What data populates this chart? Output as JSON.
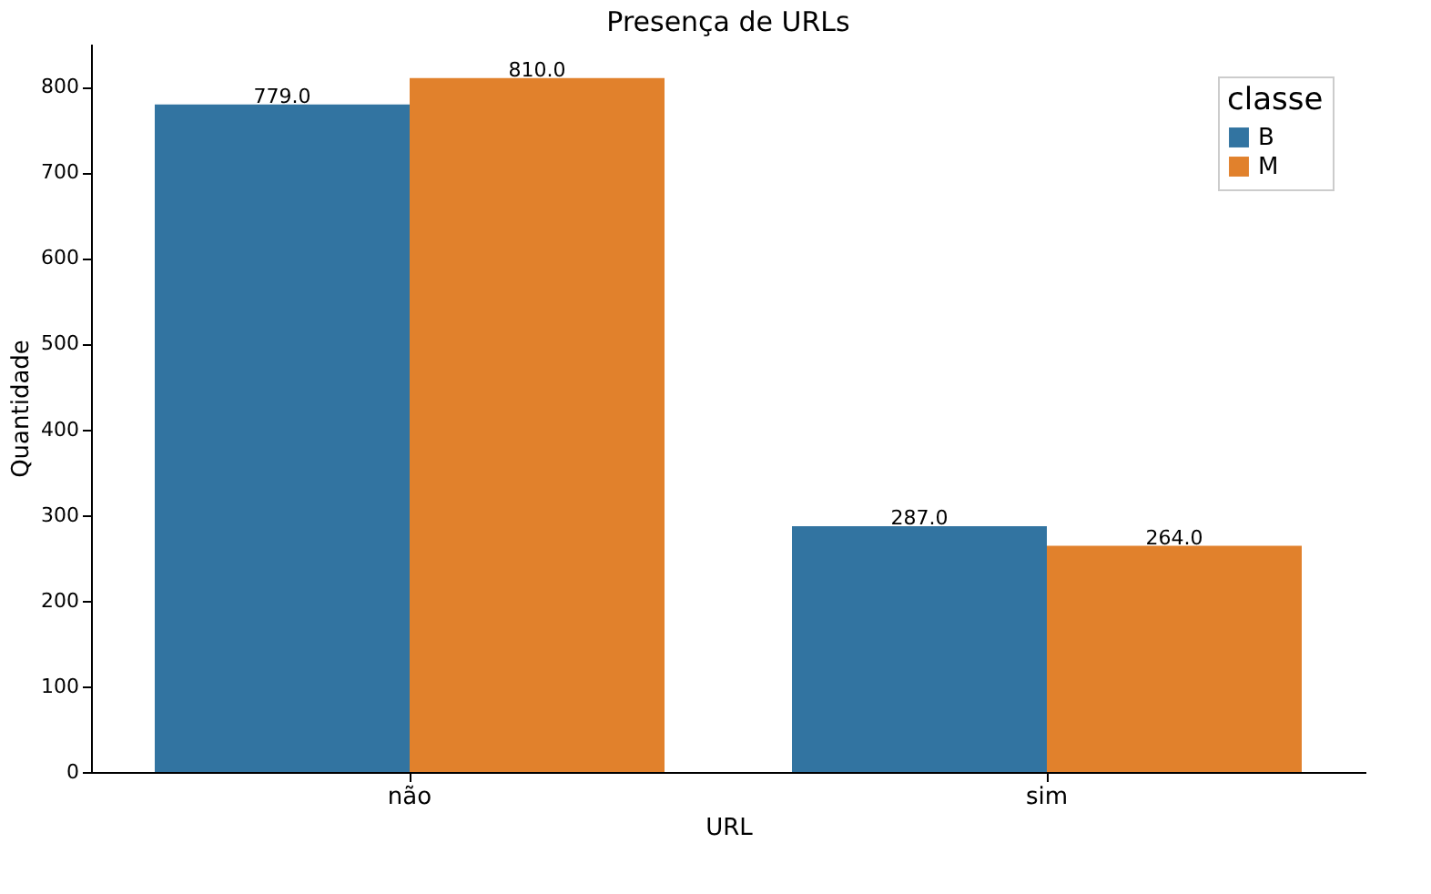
{
  "chart_data": {
    "type": "bar",
    "title": "Presença de URLs",
    "xlabel": "URL",
    "ylabel": "Quantidade",
    "legend_title": "classe",
    "categories": [
      "não",
      "sim"
    ],
    "series": [
      {
        "name": "B",
        "color": "#3274a1",
        "values": [
          779,
          287
        ],
        "value_labels": [
          "779.0",
          "287.0"
        ]
      },
      {
        "name": "M",
        "color": "#e1812c",
        "values": [
          810,
          264
        ],
        "value_labels": [
          "810.0",
          "264.0"
        ]
      }
    ],
    "ylim": [
      0,
      850
    ],
    "yticks": [
      0,
      100,
      200,
      300,
      400,
      500,
      600,
      700,
      800
    ],
    "grid": false,
    "legend": "top right"
  }
}
